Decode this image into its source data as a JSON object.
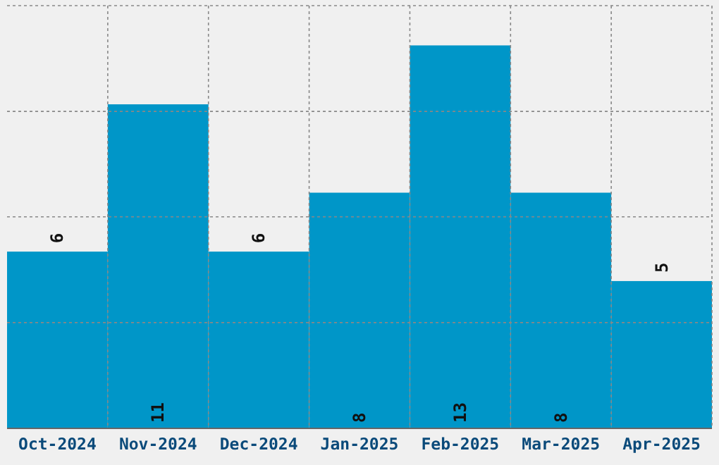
{
  "chart_data": {
    "type": "bar",
    "categories": [
      "Oct-2024",
      "Nov-2024",
      "Dec-2024",
      "Jan-2025",
      "Feb-2025",
      "Mar-2025",
      "Apr-2025"
    ],
    "values": [
      6,
      11,
      6,
      8,
      13,
      8,
      5
    ],
    "color": "#0096c8",
    "data_labels": true,
    "grid": true,
    "ylim": [
      0,
      14.35
    ],
    "yticks": [
      {
        "value": 3.59,
        "label": null
      },
      {
        "value": 7.18,
        "label": null
      },
      {
        "value": 10.76,
        "label": null
      },
      {
        "value": 14.35,
        "label": null
      }
    ],
    "tick_labels": "x"
  }
}
